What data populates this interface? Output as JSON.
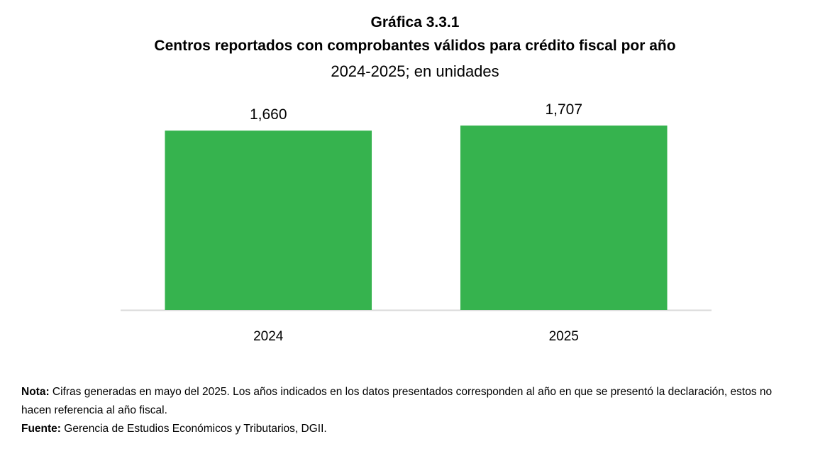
{
  "figure_label": "Gráfica 3.3.1",
  "chart_data": {
    "type": "bar",
    "title": "Centros reportados con comprobantes válidos para crédito fiscal por año",
    "subtitle": "2024-2025; en unidades",
    "categories": [
      "2024",
      "2025"
    ],
    "values": [
      1660,
      1707
    ],
    "data_labels": [
      "1,660",
      "1,707"
    ],
    "xlabel": "",
    "ylabel": "",
    "ylim": [
      0,
      1950
    ],
    "grid": false,
    "legend": "none",
    "bar_color": "#36b34e",
    "axis_color": "#d9d9d9"
  },
  "notes": {
    "nota_label": "Nota:",
    "nota_text": " Cifras generadas en mayo del 2025. Los años indicados en los datos presentados corresponden al año en que se presentó la declaración, estos no hacen referencia al año fiscal.",
    "fuente_label": "Fuente:",
    "fuente_text": " Gerencia de Estudios Económicos y Tributarios, DGII."
  }
}
